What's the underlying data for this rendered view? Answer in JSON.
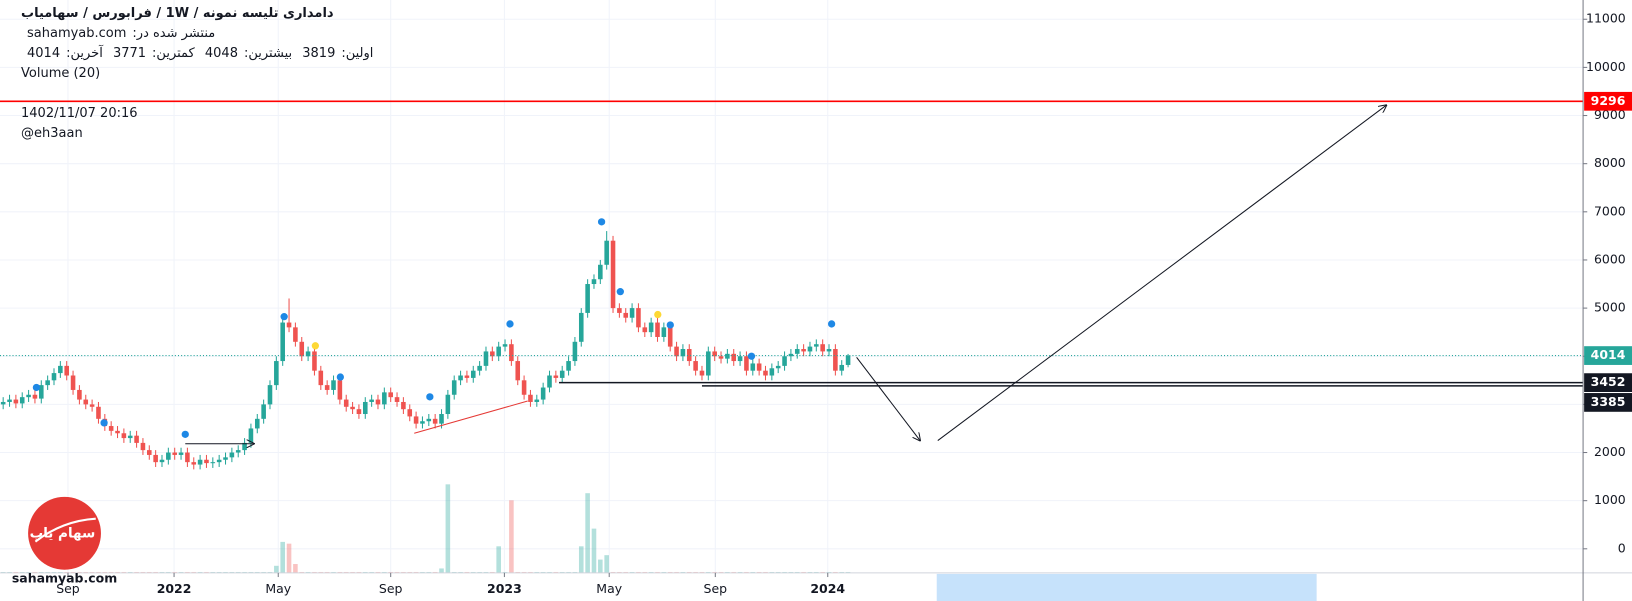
{
  "chart_data": {
    "type": "candlestick",
    "title": "دامداری تلیسه نمونه / 1W / فرابورس / سهامیاب",
    "published_label": "منتشر شده در:",
    "published_site": "sahamyab.com",
    "ohlc_labels": [
      "اولین:",
      "بیشترین:",
      "کمترین:",
      "آخرین:"
    ],
    "indicator": "Volume (20)",
    "annotations": [
      "1402/11/07 20:16",
      "@eh3aan"
    ],
    "watermark": "sahamyab.com",
    "logo_text": "سهام یاب",
    "up_color": "#26a69a",
    "down_color": "#ef5350",
    "open": [
      3000,
      3050,
      3100,
      3020,
      3150,
      3200,
      3120,
      3400,
      3500,
      3650,
      3800,
      3600,
      3300,
      3100,
      3000,
      2950,
      2700,
      2550,
      2450,
      2400,
      2300,
      2350,
      2200,
      2050,
      1950,
      1800,
      1850,
      2000,
      1950,
      2000,
      1800,
      1750,
      1850,
      1780,
      1800,
      1850,
      1900,
      2000,
      2050,
      2200,
      2500,
      2700,
      3000,
      3400,
      3900,
      4700,
      4600,
      4300,
      4000,
      4100,
      3700,
      3400,
      3300,
      3500,
      3100,
      2950,
      2900,
      2800,
      3050,
      3100,
      3000,
      3250,
      3150,
      3050,
      2900,
      2750,
      2600,
      2650,
      2700,
      2600,
      2800,
      3200,
      3500,
      3600,
      3550,
      3700,
      3800,
      4100,
      4000,
      4200,
      4250,
      3900,
      3500,
      3200,
      3050,
      3100,
      3350,
      3600,
      3550,
      3700,
      3900,
      4300,
      4900,
      5500,
      5600,
      5900,
      6400,
      5000,
      4900,
      4800,
      5000,
      4600,
      4500,
      4700,
      4400,
      4600,
      4200,
      4000,
      4150,
      3900,
      3700,
      3600,
      4100,
      4000,
      3950,
      4050,
      3900,
      4000,
      3700,
      3850,
      3700,
      3600,
      3750,
      3800,
      4000,
      4050,
      4150,
      4100,
      4200,
      4250,
      4100,
      4150,
      3700,
      3819
    ],
    "high": [
      3150,
      3200,
      3200,
      3250,
      3300,
      3300,
      3500,
      3600,
      3750,
      3900,
      3900,
      3700,
      3400,
      3200,
      3100,
      3050,
      2800,
      2650,
      2550,
      2500,
      2450,
      2450,
      2300,
      2150,
      2050,
      1950,
      2100,
      2100,
      2100,
      2100,
      1900,
      1950,
      1950,
      1900,
      1950,
      2000,
      2100,
      2150,
      2300,
      2600,
      2800,
      3100,
      3500,
      4000,
      4800,
      5200,
      4700,
      4400,
      4200,
      4200,
      3800,
      3500,
      3600,
      3600,
      3200,
      3050,
      3000,
      3150,
      3200,
      3200,
      3350,
      3350,
      3250,
      3150,
      3000,
      2850,
      2750,
      2800,
      2800,
      2900,
      3300,
      3600,
      3700,
      3700,
      3800,
      3900,
      4200,
      4200,
      4300,
      4350,
      4350,
      4000,
      3600,
      3300,
      3200,
      3450,
      3700,
      3700,
      3800,
      4000,
      4400,
      5000,
      5600,
      5700,
      6000,
      6600,
      6500,
      5100,
      5000,
      5100,
      5100,
      4700,
      4800,
      4800,
      4700,
      4700,
      4300,
      4250,
      4250,
      4000,
      3800,
      4200,
      4200,
      4100,
      4150,
      4150,
      4100,
      4100,
      3950,
      3950,
      3800,
      3850,
      3900,
      4100,
      4150,
      4250,
      4250,
      4300,
      4350,
      4350,
      4250,
      4250,
      3919,
      4048
    ],
    "low": [
      2900,
      2950,
      2920,
      2920,
      3050,
      3020,
      3020,
      3300,
      3400,
      3550,
      3500,
      3200,
      3000,
      2900,
      2850,
      2600,
      2450,
      2350,
      2300,
      2200,
      2200,
      2100,
      1950,
      1850,
      1700,
      1700,
      1750,
      1850,
      1850,
      1700,
      1650,
      1650,
      1680,
      1680,
      1700,
      1750,
      1800,
      1900,
      1950,
      2100,
      2400,
      2600,
      2900,
      3300,
      3800,
      4500,
      4200,
      3900,
      3900,
      3600,
      3300,
      3200,
      3200,
      3000,
      2850,
      2800,
      2700,
      2700,
      2950,
      2900,
      2900,
      3050,
      2950,
      2800,
      2650,
      2500,
      2500,
      2550,
      2500,
      2500,
      2700,
      3100,
      3400,
      3450,
      3450,
      3600,
      3700,
      3900,
      3900,
      4100,
      3800,
      3400,
      3100,
      2950,
      2950,
      3000,
      3250,
      3450,
      3450,
      3600,
      3800,
      4200,
      4800,
      5400,
      5500,
      5800,
      4900,
      4800,
      4700,
      4700,
      4500,
      4400,
      4400,
      4300,
      4300,
      4100,
      3900,
      3900,
      3800,
      3600,
      3500,
      3500,
      3900,
      3850,
      3850,
      3800,
      3800,
      3600,
      3600,
      3600,
      3500,
      3500,
      3650,
      3700,
      3900,
      3950,
      4000,
      4000,
      4100,
      4000,
      4000,
      3600,
      3600,
      3771
    ],
    "close": [
      3050,
      3100,
      3020,
      3150,
      3200,
      3120,
      3400,
      3500,
      3650,
      3800,
      3600,
      3300,
      3100,
      3000,
      2950,
      2700,
      2550,
      2450,
      2400,
      2300,
      2350,
      2200,
      2050,
      1950,
      1800,
      1850,
      2000,
      1950,
      2000,
      1800,
      1750,
      1850,
      1780,
      1800,
      1850,
      1900,
      2000,
      2050,
      2200,
      2500,
      2700,
      3000,
      3400,
      3900,
      4700,
      4600,
      4300,
      4000,
      4100,
      3700,
      3400,
      3300,
      3500,
      3100,
      2950,
      2900,
      2800,
      3050,
      3100,
      3000,
      3250,
      3150,
      3050,
      2900,
      2750,
      2600,
      2650,
      2700,
      2600,
      2800,
      3200,
      3500,
      3600,
      3550,
      3700,
      3800,
      4100,
      4000,
      4200,
      4250,
      3900,
      3500,
      3200,
      3050,
      3100,
      3350,
      3600,
      3550,
      3700,
      3900,
      4300,
      4900,
      5500,
      5600,
      5900,
      6400,
      5000,
      4900,
      4800,
      5000,
      4600,
      4500,
      4700,
      4400,
      4600,
      4200,
      4000,
      4150,
      3900,
      3700,
      3600,
      4100,
      4000,
      3950,
      4050,
      3900,
      4000,
      3700,
      3850,
      3700,
      3600,
      3750,
      3800,
      4000,
      4050,
      4150,
      4100,
      4200,
      4250,
      4100,
      4150,
      3700,
      3819,
      4014
    ],
    "volume": [
      1,
      1,
      1,
      1,
      1,
      1,
      1,
      1,
      1,
      1,
      1,
      1,
      1,
      1,
      1,
      1,
      1,
      1,
      1,
      1,
      1,
      1,
      1,
      1,
      1,
      1,
      1,
      1,
      1,
      1,
      1,
      1,
      1,
      1,
      1,
      1,
      1,
      1,
      1,
      1,
      1,
      1,
      1,
      8,
      35,
      33,
      10,
      1,
      1,
      1,
      1,
      1,
      1,
      1,
      1,
      1,
      1,
      1,
      1,
      1,
      1,
      1,
      1,
      1,
      1,
      1,
      1,
      1,
      1,
      5,
      100,
      1,
      1,
      1,
      1,
      1,
      1,
      1,
      30,
      1,
      82,
      1,
      1,
      1,
      1,
      1,
      1,
      1,
      1,
      1,
      1,
      30,
      90,
      50,
      15,
      20,
      1,
      1,
      1,
      1,
      1,
      1,
      1,
      1,
      1,
      1,
      1,
      1,
      1,
      1,
      1,
      1,
      1,
      1,
      1,
      1,
      1,
      1,
      1,
      1,
      1,
      1,
      1,
      1,
      1,
      1,
      1,
      1,
      1,
      1,
      1,
      1,
      1,
      1
    ],
    "xlim": [
      -0.5,
      248.7
    ],
    "xticks": [
      {
        "value": 10.2,
        "label": "Sep"
      },
      {
        "value": 26.9,
        "label": "2022"
      },
      {
        "value": 43.3,
        "label": "May"
      },
      {
        "value": 61,
        "label": "Sep"
      },
      {
        "value": 78.9,
        "label": "2023"
      },
      {
        "value": 95.4,
        "label": "May"
      },
      {
        "value": 112.1,
        "label": "Sep"
      },
      {
        "value": 129.8,
        "label": "2024"
      }
    ],
    "ylim": [
      -500,
      11400
    ],
    "yticks": [
      0,
      1000,
      2000,
      3000,
      4000,
      5000,
      6000,
      7000,
      8000,
      9000,
      10000,
      11000
    ],
    "grid": true,
    "horizontal_lines": [
      {
        "value": 9296,
        "color": "#ff0000",
        "from": -0.5
      },
      {
        "value": 3452,
        "color": "#131722",
        "from": 87.5
      },
      {
        "value": 3385,
        "color": "#131722",
        "from": 110
      }
    ]
  }
}
